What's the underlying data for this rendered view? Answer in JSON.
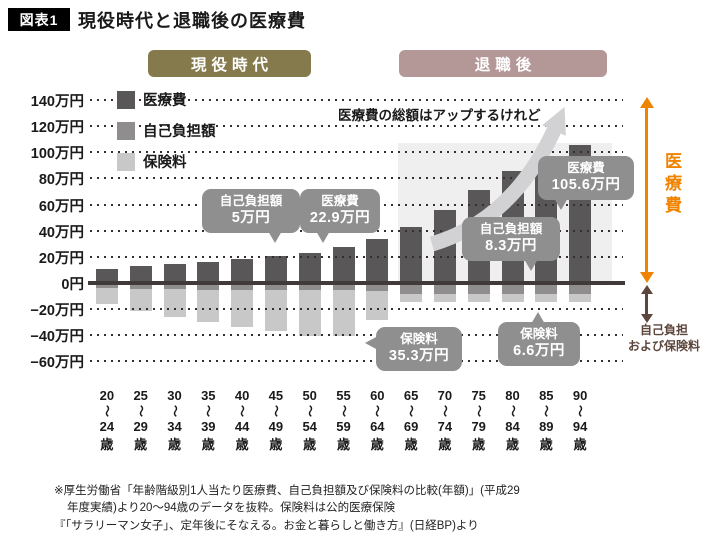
{
  "header": {
    "badge": "図表1",
    "title": "現役時代と退職後の医療費"
  },
  "era_bands": {
    "working": "現役時代",
    "working_color": "#857a4b",
    "retired": "退職後",
    "retired_color": "#b49898"
  },
  "legend": [
    {
      "label": "医療費",
      "color": "#595757"
    },
    {
      "label": "自己負担額",
      "color": "#8f8d8d"
    },
    {
      "label": "保険料",
      "color": "#c8c8c9"
    }
  ],
  "annotation": {
    "trend_text": "医療費の総額はアップするけれど"
  },
  "callouts": [
    {
      "label": "自己負担額",
      "value": "5万円"
    },
    {
      "label": "医療費",
      "value": "22.9万円"
    },
    {
      "label": "保険料",
      "value": "35.3万円"
    },
    {
      "label": "自己負担額",
      "value": "8.3万円"
    },
    {
      "label": "医療費",
      "value": "105.6万円"
    },
    {
      "label": "保険料",
      "value": "6.6万円"
    }
  ],
  "side_labels": {
    "medical": "医療費",
    "medical_color": "#f08300",
    "burden_line1": "自己負担",
    "burden_line2": "および保険料",
    "burden_color": "#5d473d"
  },
  "colors": {
    "callout_bg": "#8f8f90"
  },
  "chart_data": {
    "type": "bar",
    "stacked_below_zero": true,
    "unit": "万円",
    "title": "現役時代と退職後の医療費",
    "categories": [
      [
        "20",
        "24"
      ],
      [
        "25",
        "29"
      ],
      [
        "30",
        "34"
      ],
      [
        "35",
        "39"
      ],
      [
        "40",
        "44"
      ],
      [
        "45",
        "49"
      ],
      [
        "50",
        "54"
      ],
      [
        "55",
        "59"
      ],
      [
        "60",
        "64"
      ],
      [
        "65",
        "69"
      ],
      [
        "70",
        "74"
      ],
      [
        "75",
        "79"
      ],
      [
        "80",
        "84"
      ],
      [
        "85",
        "89"
      ],
      [
        "90",
        "94"
      ]
    ],
    "category_tilde": "〜",
    "category_suffix": "歳",
    "series": [
      {
        "name": "医療費",
        "color": "#595757",
        "direction": "up",
        "values": [
          11,
          13,
          14.5,
          16,
          18,
          20.5,
          22.9,
          27.5,
          34,
          43,
          56,
          71,
          86,
          97,
          105.6
        ]
      },
      {
        "name": "自己負担額",
        "color": "#8f8d8d",
        "direction": "down",
        "values": [
          4,
          4.5,
          4.7,
          5,
          5,
          5,
          5,
          5.5,
          6.5,
          8.3,
          8.3,
          8.3,
          8.3,
          8.3,
          8.3
        ]
      },
      {
        "name": "保険料",
        "color": "#c8c8c9",
        "direction": "down",
        "values": [
          12,
          17,
          21,
          25,
          29,
          32,
          35.3,
          35.3,
          22,
          6.6,
          6.6,
          6.6,
          6.6,
          6.6,
          6.6
        ]
      }
    ],
    "axis": {
      "ymax": 140,
      "ymin": -60,
      "step": 20,
      "grid": "dotted",
      "ticks": [
        {
          "value": 140,
          "label": "140万円"
        },
        {
          "value": 120,
          "label": "120万円"
        },
        {
          "value": 100,
          "label": "100万円"
        },
        {
          "value": 80,
          "label": "80万円"
        },
        {
          "value": 60,
          "label": "60万円"
        },
        {
          "value": 40,
          "label": "40万円"
        },
        {
          "value": 20,
          "label": "20万円"
        },
        {
          "value": 0,
          "label": "0円"
        },
        {
          "value": -20,
          "label": "−20万円"
        },
        {
          "value": -40,
          "label": "−40万円"
        },
        {
          "value": -60,
          "label": "−60万円"
        }
      ]
    },
    "legend_position": "top-left"
  },
  "footnotes": [
    "※厚生労働省「年齢階級別1人当たり医療費、自己負担額及び保険料の比較(年額)」(平成29",
    "年度実績)より20〜94歳のデータを抜粋。保険料は公的医療保険",
    "『「サラリーマン女子」、定年後にそなえる。お金と暮らしと働き方』(日経BP)より"
  ]
}
